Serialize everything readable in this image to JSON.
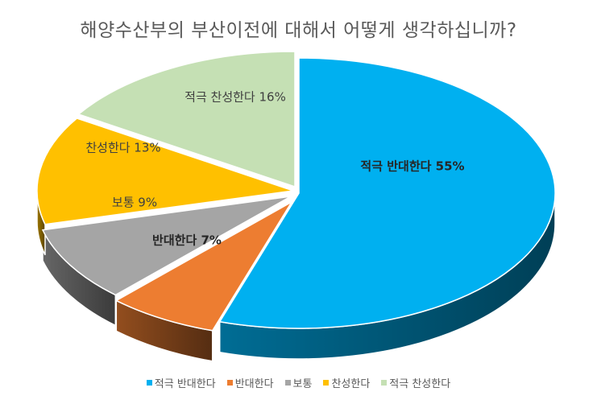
{
  "chart_data": {
    "type": "pie",
    "title": "해양수산부의 부산이전에 대해서 어떻게 생각하십니까?",
    "categories": [
      "적극 반대한다",
      "반대한다",
      "보통",
      "찬성한다",
      "적극 찬성한다"
    ],
    "values": [
      55,
      7,
      9,
      13,
      16
    ],
    "unit": "%",
    "data_labels": [
      "적극 반대한다 55%",
      "반대한다 7%",
      "보통 9%",
      "찬성한다 13%",
      "적극 찬성한다 16%"
    ],
    "colors": [
      "#00b0f0",
      "#ed7d31",
      "#a5a5a5",
      "#ffc000",
      "#c5e0b4"
    ],
    "legend_position": "bottom",
    "style": "3d"
  }
}
